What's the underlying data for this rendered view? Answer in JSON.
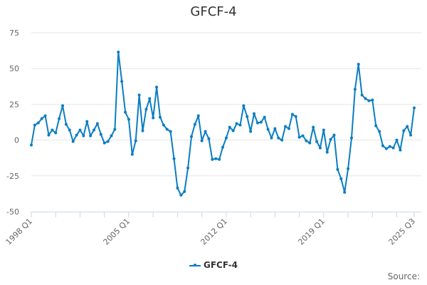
{
  "title": "GFCF-4",
  "legend": {
    "label": "GFCF-4",
    "color": "#0a7dc2"
  },
  "source_label": "Source:",
  "y_ticks": [
    "75",
    "50",
    "25",
    "0",
    "-25",
    "-50"
  ],
  "x_tick_labels": [
    "1998 Q1",
    "2005 Q1",
    "2012 Q1",
    "2019 Q1",
    "2025 Q3"
  ],
  "chart_data": {
    "type": "line",
    "title": "GFCF-4",
    "xlabel": "",
    "ylabel": "",
    "ylim": [
      -50,
      75
    ],
    "yticks": [
      -50,
      -25,
      0,
      25,
      50,
      75
    ],
    "xticks_labels": [
      "1998 Q1",
      "2005 Q1",
      "2012 Q1",
      "2019 Q1",
      "2025 Q3"
    ],
    "grid": true,
    "legend_position": "bottom-center",
    "x_start": "1998 Q1",
    "x_end": "2025 Q3",
    "series": [
      {
        "name": "GFCF-4",
        "color": "#0a7dc2",
        "values": [
          -3.5,
          10.5,
          12,
          15,
          17,
          3.5,
          7,
          5,
          15,
          24,
          11,
          7,
          -1,
          3.5,
          7,
          3,
          13,
          3,
          7,
          11.5,
          4,
          -2,
          -1,
          3,
          7.5,
          61.5,
          41,
          19.5,
          14.5,
          -10,
          -0.5,
          31.5,
          6.5,
          21.5,
          29,
          15.5,
          37,
          16,
          10.5,
          7.5,
          6,
          -13,
          -33.5,
          -38.5,
          -36,
          -19.5,
          2.5,
          11,
          17,
          -0.5,
          6,
          1,
          -13.5,
          -13,
          -13.5,
          -5,
          1.5,
          9,
          6.5,
          11.5,
          10.5,
          24,
          16.5,
          6,
          18.5,
          12,
          12.5,
          16,
          7.5,
          1.5,
          8,
          1.5,
          0,
          9.5,
          8,
          18,
          16.5,
          2,
          3,
          -0.5,
          -2,
          9,
          -1,
          -5.5,
          7,
          -8.5,
          0.5,
          3.5,
          -20.5,
          -27,
          -36.5,
          -20,
          1.5,
          35.5,
          53,
          31.5,
          29,
          27.5,
          28,
          10,
          6,
          -4,
          -6,
          -4.5,
          -5.5,
          0,
          -7,
          6.5,
          9.5,
          3.5,
          22.5
        ]
      }
    ]
  }
}
